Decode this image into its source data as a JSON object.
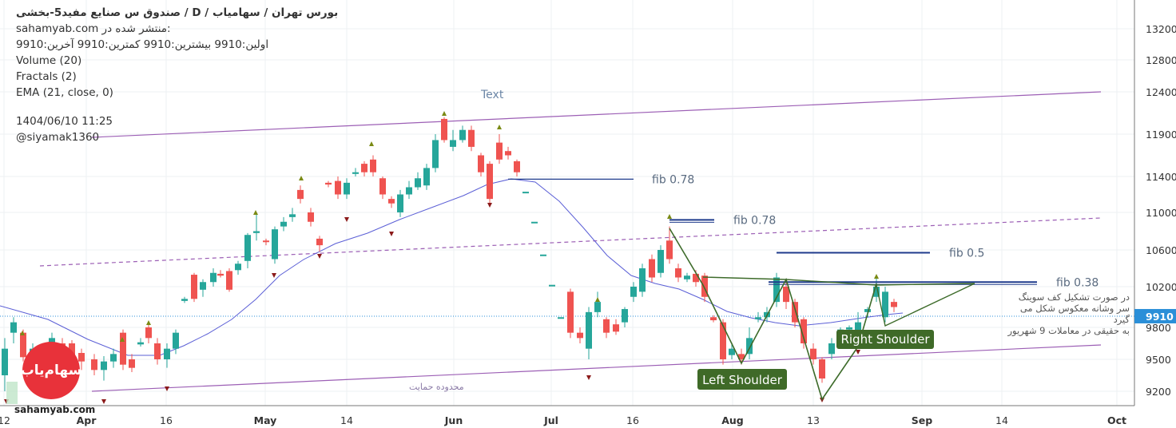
{
  "header": {
    "title": "صندوق س صنایع مفید5-بخشی /  D  /  بورس تهران / سهامیاب",
    "published_prefix": "منتشر شده در:",
    "published_site": "sahamyab.com",
    "ohlc": "اولین:9910  بیشترین:9910  کمترین:9910  آخرین:9910",
    "indicators": [
      "Volume (20)",
      "Fractals (2)",
      "EMA (21, close, 0)"
    ],
    "timestamp": "1404/06/10 11:25",
    "author": "@siyamak1360"
  },
  "annotations": {
    "text_label": "Text",
    "support_zone": "محدوده حمایت",
    "note_lines": [
      "در صورت تشکیل کف سوینگ",
      "سر وشانه معکوس شکل می گیرد",
      "به حقیقی در معاملات 9 شهریور"
    ],
    "left_shoulder": "Left Shoulder",
    "right_shoulder": "Right Shoulder"
  },
  "watermark": {
    "url": "sahamyab.com",
    "logo_text": "سهام‌یاب"
  },
  "colors": {
    "up": "#26a69a",
    "down": "#ef5350",
    "ema": "#5b5fd6",
    "channel": "#9c5fb5",
    "fib": "#1f3b8c",
    "pattern": "#3d6b2a",
    "price_tag": "#2b8fd8"
  },
  "chart_data": {
    "type": "candlestick",
    "title": "صندوق س صنایع مفید5-بخشی / D / بورس تهران",
    "ylim": [
      9000,
      13500
    ],
    "y_ticks": [
      9200,
      9500,
      9800,
      10200,
      10600,
      11000,
      11400,
      11900,
      12400,
      12800,
      13200
    ],
    "x_ticks": [
      "12",
      "Apr",
      "16",
      "May",
      "14",
      "Jun",
      "Jul",
      "16",
      "Aug",
      "13",
      "Sep",
      "14",
      "Oct"
    ],
    "last_price": 9910,
    "fib_levels": [
      {
        "label": "fib 0.78",
        "value": 11370
      },
      {
        "label": "fib 0.78",
        "value": 10920
      },
      {
        "label": "fib 0.5",
        "value": 10570
      },
      {
        "label": "fib 0.38",
        "value": 10250
      }
    ]
  }
}
